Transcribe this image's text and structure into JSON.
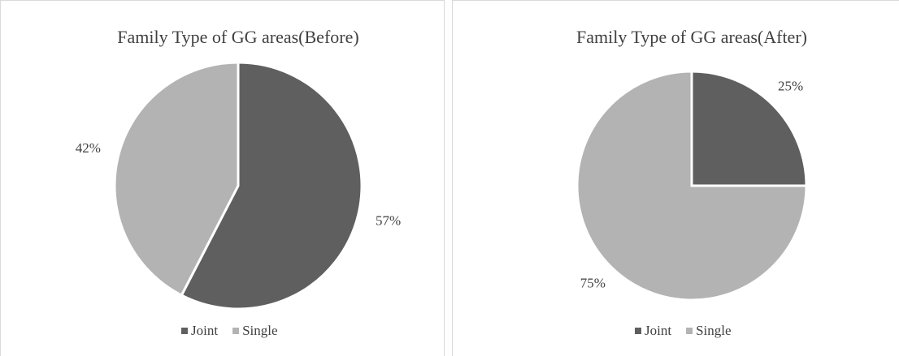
{
  "chart_data": [
    {
      "type": "pie",
      "title": "Family Type of GG areas(Before)",
      "categories": [
        "Joint",
        "Single"
      ],
      "values": [
        57,
        42
      ],
      "value_labels": [
        "57%",
        "42%"
      ],
      "colors": [
        "#5f5f5f",
        "#b3b3b3"
      ],
      "legend": "bottom"
    },
    {
      "type": "pie",
      "title": "Family Type of GG areas(After)",
      "categories": [
        "Joint",
        "Single"
      ],
      "values": [
        25,
        75
      ],
      "value_labels": [
        "25%",
        "75%"
      ],
      "colors": [
        "#5f5f5f",
        "#b3b3b3"
      ],
      "legend": "bottom"
    }
  ]
}
